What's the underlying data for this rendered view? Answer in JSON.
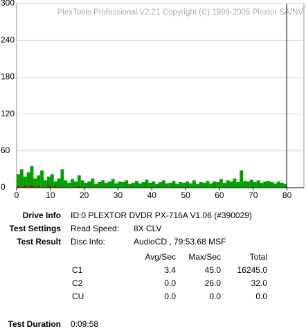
{
  "chart_data": {
    "type": "bar",
    "watermark": "PlexTools Professional V2.21 Copyright (C) 1999-2005 Plextor SA/NV",
    "x": [
      0,
      1,
      2,
      3,
      4,
      5,
      6,
      7,
      8,
      9,
      10,
      11,
      12,
      13,
      14,
      15,
      16,
      17,
      18,
      19,
      20,
      21,
      22,
      23,
      24,
      25,
      26,
      27,
      28,
      29,
      30,
      31,
      32,
      33,
      34,
      35,
      36,
      37,
      38,
      39,
      40,
      41,
      42,
      43,
      44,
      45,
      46,
      47,
      48,
      49,
      50,
      51,
      52,
      53,
      54,
      55,
      56,
      57,
      58,
      59,
      60,
      61,
      62,
      63,
      64,
      65,
      66,
      67,
      68,
      69,
      70,
      71,
      72,
      73,
      74,
      75,
      76,
      77,
      78,
      79
    ],
    "series": [
      {
        "name": "C1",
        "color": "#00a000",
        "values": [
          22,
          30,
          18,
          25,
          35,
          15,
          20,
          28,
          12,
          18,
          22,
          10,
          15,
          30,
          12,
          8,
          14,
          10,
          20,
          12,
          8,
          10,
          15,
          6,
          9,
          12,
          8,
          10,
          14,
          7,
          10,
          9,
          12,
          6,
          8,
          11,
          7,
          9,
          13,
          8,
          10,
          6,
          9,
          12,
          7,
          8,
          11,
          6,
          9,
          8,
          10,
          7,
          12,
          6,
          9,
          8,
          11,
          7,
          10,
          9,
          14,
          8,
          12,
          10,
          15,
          9,
          28,
          11,
          10,
          13,
          9,
          12,
          8,
          10,
          11,
          9,
          7,
          10,
          8,
          6
        ]
      },
      {
        "name": "C2",
        "color": "#e00000",
        "values": [
          2,
          0,
          3,
          0,
          4,
          0,
          2,
          0,
          0,
          3,
          0,
          2,
          0,
          0,
          0,
          0,
          0,
          0,
          2,
          0,
          0,
          0,
          0,
          0,
          0,
          0,
          0,
          0,
          0,
          0,
          0,
          0,
          0,
          0,
          0,
          0,
          0,
          0,
          0,
          0,
          0,
          0,
          0,
          0,
          0,
          0,
          0,
          0,
          0,
          0,
          0,
          0,
          0,
          0,
          0,
          0,
          0,
          0,
          0,
          0,
          0,
          0,
          0,
          0,
          0,
          0,
          0,
          0,
          0,
          0,
          0,
          0,
          0,
          0,
          0,
          0,
          0,
          0,
          0,
          0
        ]
      }
    ],
    "disc_end": 79.89,
    "xlim": [
      0,
      85
    ],
    "xticks": [
      0,
      10,
      20,
      30,
      40,
      50,
      60,
      70,
      80
    ],
    "ylim": [
      0,
      300
    ],
    "yticks": [
      0,
      60,
      120,
      180,
      240,
      300
    ],
    "grid": true
  },
  "info": {
    "drive_label": "Drive Info",
    "drive_value": "ID:0 PLEXTOR DVDR PX-716A V1.06 (#390029)",
    "settings_label": "Test Settings",
    "speed_label": "Read Speed:",
    "speed_value": "8X CLV",
    "result_label": "Test Result",
    "disc_label": "Disc Info:",
    "disc_value": "AudioCD , 79:53.68 MSF",
    "table": {
      "header": [
        "Avg/Sec",
        "Max/Sec",
        "Total"
      ],
      "rows": [
        [
          "C1",
          "3.4",
          "45.0",
          "16245.0"
        ],
        [
          "C2",
          "0.0",
          "26.0",
          "32.0"
        ],
        [
          "CU",
          "0.0",
          "0.0",
          "0.0"
        ]
      ]
    },
    "duration_label": "Test Duration",
    "duration_value": "0:09:58"
  }
}
